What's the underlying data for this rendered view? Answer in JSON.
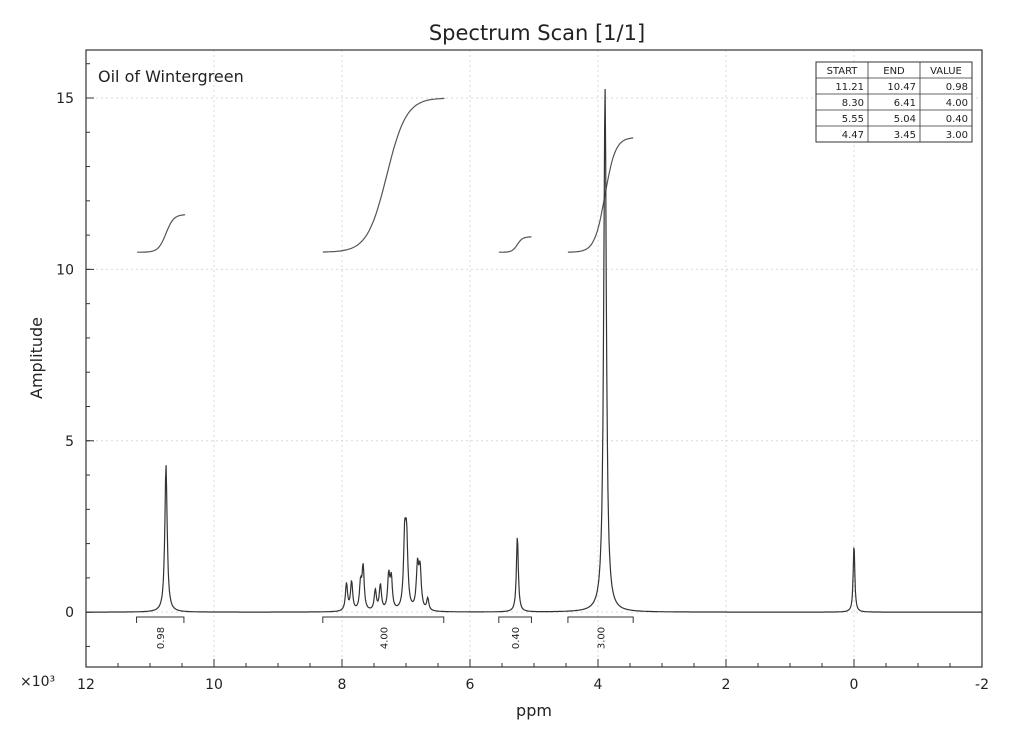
{
  "chart_data": {
    "type": "line",
    "title": "Spectrum Scan [1/1]",
    "xlabel": "ppm",
    "ylabel": "Amplitude",
    "y_multiplier": "×10³",
    "sample_label": "Oil of Wintergreen",
    "xlim": [
      12,
      -2
    ],
    "ylim": [
      -1.6,
      16.4
    ],
    "x_ticks": [
      12,
      10,
      8,
      6,
      4,
      2,
      0,
      -2
    ],
    "x_tick_labels": [
      "12",
      "10",
      "8",
      "6",
      "4",
      "2",
      "0",
      "-2"
    ],
    "y_ticks": [
      0,
      5,
      10,
      15
    ],
    "y_tick_labels": [
      "0",
      "5",
      "10",
      "15"
    ],
    "grid": true,
    "baseline": 0,
    "peaks": [
      {
        "ppm": 10.75,
        "height": 4.3,
        "width": 0.022
      },
      {
        "ppm": 7.93,
        "height": 0.8,
        "width": 0.02
      },
      {
        "ppm": 7.85,
        "height": 0.85,
        "width": 0.02
      },
      {
        "ppm": 7.71,
        "height": 0.75,
        "width": 0.02
      },
      {
        "ppm": 7.67,
        "height": 1.25,
        "width": 0.02
      },
      {
        "ppm": 7.48,
        "height": 0.6,
        "width": 0.02
      },
      {
        "ppm": 7.4,
        "height": 0.75,
        "width": 0.02
      },
      {
        "ppm": 7.27,
        "height": 1.0,
        "width": 0.02
      },
      {
        "ppm": 7.23,
        "height": 0.9,
        "width": 0.02
      },
      {
        "ppm": 7.02,
        "height": 2.0,
        "width": 0.022
      },
      {
        "ppm": 6.99,
        "height": 1.9,
        "width": 0.022
      },
      {
        "ppm": 6.82,
        "height": 1.25,
        "width": 0.022
      },
      {
        "ppm": 6.78,
        "height": 1.15,
        "width": 0.022
      },
      {
        "ppm": 6.66,
        "height": 0.35,
        "width": 0.02
      },
      {
        "ppm": 5.26,
        "height": 2.2,
        "width": 0.018
      },
      {
        "ppm": 3.89,
        "height": 15.3,
        "width": 0.025
      },
      {
        "ppm": 0.0,
        "height": 2.0,
        "width": 0.015
      }
    ],
    "integrals": [
      {
        "start": 11.21,
        "end": 10.47,
        "value": 0.98,
        "label": "0.98",
        "curve_x": [
          11.2,
          10.45
        ],
        "step_at": 10.75,
        "y_from": 10.5,
        "y_to": 11.6
      },
      {
        "start": 8.3,
        "end": 6.41,
        "value": 4.0,
        "label": "4.00",
        "curve_x": [
          8.3,
          6.4
        ],
        "step_at": 7.3,
        "y_from": 10.5,
        "y_to": 15.0
      },
      {
        "start": 5.55,
        "end": 5.04,
        "value": 0.4,
        "label": "0.40",
        "curve_x": [
          5.55,
          5.04
        ],
        "step_at": 5.26,
        "y_from": 10.5,
        "y_to": 10.95
      },
      {
        "start": 4.47,
        "end": 3.45,
        "value": 3.0,
        "label": "3.00",
        "curve_x": [
          4.47,
          3.45
        ],
        "step_at": 3.89,
        "y_from": 10.5,
        "y_to": 13.85
      }
    ],
    "integral_table": {
      "headers": [
        "START",
        "END",
        "VALUE"
      ],
      "rows": [
        [
          "11.21",
          "10.47",
          "0.98"
        ],
        [
          "8.30",
          "6.41",
          "4.00"
        ],
        [
          "5.55",
          "5.04",
          "0.40"
        ],
        [
          "4.47",
          "3.45",
          "3.00"
        ]
      ]
    }
  }
}
